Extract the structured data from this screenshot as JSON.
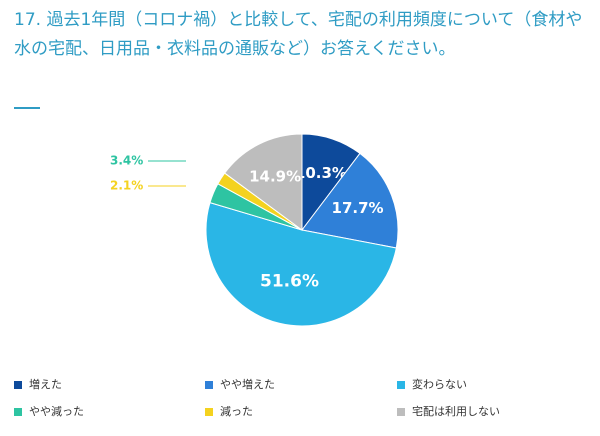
{
  "chart_data": {
    "type": "pie",
    "title": "17. 過去1年間（コロナ禍）と比較して、宅配の利用頻度について（食材や水の宅配、日用品・衣料品の通販など）お答えください。",
    "categories": [
      "増えた",
      "やや増えた",
      "変わらない",
      "やや減った",
      "減った",
      "宅配は利用しない"
    ],
    "values": [
      10.3,
      17.7,
      51.6,
      3.4,
      2.1,
      14.9
    ],
    "value_labels": [
      "10.3%",
      "17.7%",
      "51.6%",
      "3.4%",
      "2.1%",
      "14.9%"
    ],
    "colors": [
      "#0d4a9b",
      "#2f80d8",
      "#2ab6e6",
      "#2ec4a2",
      "#f4d21f",
      "#bdbdbd"
    ],
    "legend": "bottom"
  }
}
